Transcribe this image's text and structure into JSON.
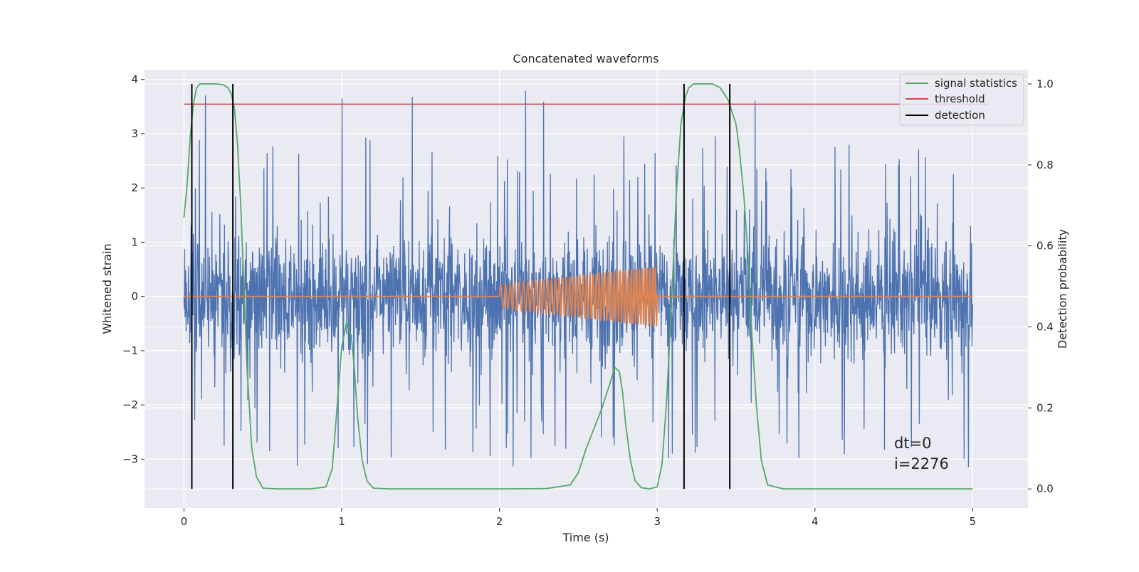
{
  "chart_data": {
    "type": "line",
    "title": "Concatenated waveforms",
    "xlabel": "Time (s)",
    "ylabel_left": "Whitened strain",
    "ylabel_right": "Detection probability",
    "xlim": [
      -0.25,
      5.35
    ],
    "ylim_left": [
      -3.9,
      4.18
    ],
    "ylim_right": [
      -0.047,
      1.035
    ],
    "x_ticks": [
      0,
      1,
      2,
      3,
      4,
      5
    ],
    "x_tick_labels": [
      "0",
      "1",
      "2",
      "3",
      "4",
      "5"
    ],
    "y_left_ticks": [
      -3,
      -2,
      -1,
      0,
      1,
      2,
      3,
      4
    ],
    "y_left_tick_labels": [
      "−3",
      "−2",
      "−1",
      "0",
      "1",
      "2",
      "3",
      "4"
    ],
    "y_right_ticks": [
      0.0,
      0.2,
      0.4,
      0.6,
      0.8,
      1.0
    ],
    "y_right_tick_labels": [
      "0.0",
      "0.2",
      "0.4",
      "0.6",
      "0.8",
      "1.0"
    ],
    "grid": true,
    "legend_placement": "top-right",
    "legend": [
      "signal statistics",
      "threshold",
      "detection"
    ],
    "series": [
      {
        "name": "",
        "axis": "left",
        "color": "#4c72b0",
        "kind": "noise",
        "x_range": [
          0,
          5
        ],
        "typical_range": [
          -1.2,
          1.2
        ],
        "extreme_range": [
          -3.2,
          3.85
        ]
      },
      {
        "name": "",
        "axis": "left",
        "color": "#dd8452",
        "kind": "chirp",
        "zero_line_x": [
          0,
          5
        ],
        "chirp_x": [
          2.0,
          3.0
        ],
        "chirp_amplitude": [
          0.22,
          0.55
        ],
        "chirp_frequency_hz": [
          32,
          62
        ]
      },
      {
        "name": "signal statistics",
        "axis": "right",
        "color": "#55a868",
        "x": [
          0.0,
          0.02,
          0.04,
          0.06,
          0.08,
          0.1,
          0.15,
          0.2,
          0.25,
          0.28,
          0.3,
          0.32,
          0.34,
          0.36,
          0.38,
          0.4,
          0.43,
          0.46,
          0.5,
          0.6,
          0.8,
          0.9,
          0.94,
          0.97,
          1.0,
          1.03,
          1.06,
          1.08,
          1.1,
          1.13,
          1.16,
          1.2,
          1.3,
          1.5,
          2.0,
          2.3,
          2.45,
          2.5,
          2.55,
          2.6,
          2.65,
          2.7,
          2.73,
          2.76,
          2.78,
          2.8,
          2.83,
          2.86,
          2.9,
          2.95,
          3.0,
          3.03,
          3.06,
          3.09,
          3.12,
          3.15,
          3.18,
          3.2,
          3.23,
          3.26,
          3.3,
          3.35,
          3.4,
          3.45,
          3.5,
          3.52,
          3.55,
          3.58,
          3.6,
          3.63,
          3.66,
          3.7,
          3.8,
          4.0,
          4.5,
          5.0
        ],
        "values": [
          0.67,
          0.75,
          0.87,
          0.95,
          0.99,
          1.0,
          1.0,
          1.0,
          0.998,
          0.99,
          0.975,
          0.94,
          0.85,
          0.7,
          0.5,
          0.3,
          0.1,
          0.03,
          0.002,
          0.0,
          0.0,
          0.005,
          0.05,
          0.2,
          0.35,
          0.41,
          0.38,
          0.3,
          0.18,
          0.07,
          0.02,
          0.002,
          0.0,
          0.0,
          0.0,
          0.001,
          0.01,
          0.04,
          0.1,
          0.15,
          0.2,
          0.26,
          0.3,
          0.29,
          0.24,
          0.16,
          0.07,
          0.02,
          0.003,
          0.0,
          0.005,
          0.06,
          0.22,
          0.45,
          0.72,
          0.9,
          0.97,
          0.99,
          1.0,
          1.0,
          1.0,
          1.0,
          0.99,
          0.96,
          0.9,
          0.84,
          0.72,
          0.55,
          0.38,
          0.2,
          0.07,
          0.01,
          0.0,
          0.0,
          0.0,
          0.0
        ]
      },
      {
        "name": "threshold",
        "axis": "right",
        "color": "#c44e52",
        "x": [
          0,
          5.1
        ],
        "values": [
          0.95,
          0.95
        ]
      },
      {
        "name": "detection",
        "axis": "right",
        "color": "#000000",
        "kind": "vertical-lines",
        "x": [
          0.05,
          0.31,
          3.17,
          3.46
        ],
        "y_range": [
          0.0,
          1.0
        ]
      }
    ],
    "annotation": {
      "line1": "dt=0",
      "line2": "i=2276"
    }
  }
}
